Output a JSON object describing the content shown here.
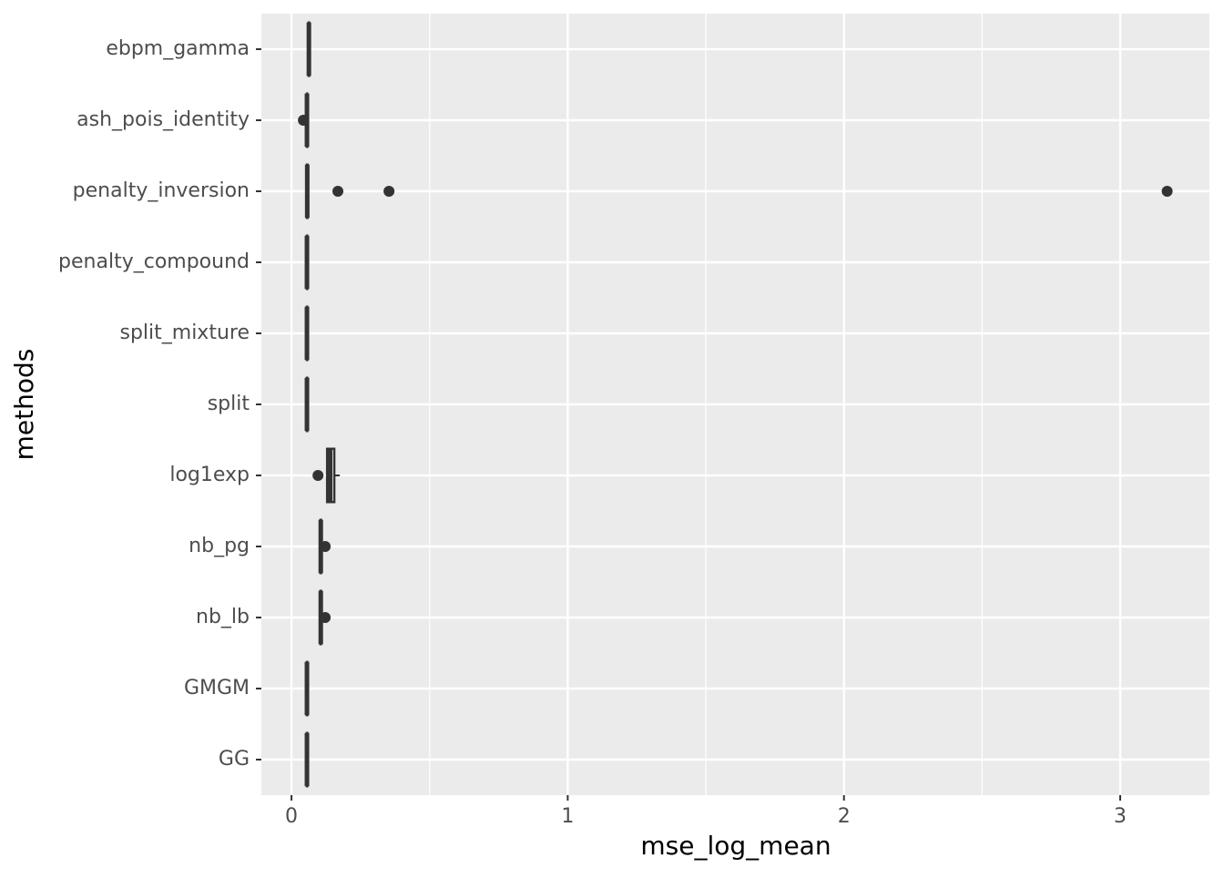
{
  "chart_data": {
    "type": "boxplot",
    "orientation": "horizontal",
    "x_label": "mse_log_mean",
    "y_label": "methods",
    "categories": [
      "ebpm_gamma",
      "ash_pois_identity",
      "penalty_inversion",
      "penalty_compound",
      "split_mixture",
      "split",
      "log1exp",
      "nb_pg",
      "nb_lb",
      "GMGM",
      "GG"
    ],
    "boxes": [
      {
        "min": 0.062,
        "q1": 0.062,
        "median": 0.063,
        "q3": 0.064,
        "max": 0.064,
        "outliers": []
      },
      {
        "min": 0.055,
        "q1": 0.056,
        "median": 0.056,
        "q3": 0.057,
        "max": 0.057,
        "outliers": [
          0.043
        ]
      },
      {
        "min": 0.056,
        "q1": 0.056,
        "median": 0.057,
        "q3": 0.058,
        "max": 0.058,
        "outliers": [
          0.168,
          0.353,
          3.17
        ]
      },
      {
        "min": 0.055,
        "q1": 0.056,
        "median": 0.056,
        "q3": 0.057,
        "max": 0.057,
        "outliers": []
      },
      {
        "min": 0.055,
        "q1": 0.056,
        "median": 0.056,
        "q3": 0.057,
        "max": 0.057,
        "outliers": []
      },
      {
        "min": 0.055,
        "q1": 0.056,
        "median": 0.056,
        "q3": 0.057,
        "max": 0.057,
        "outliers": []
      },
      {
        "min": 0.129,
        "q1": 0.129,
        "median": 0.14,
        "q3": 0.155,
        "max": 0.175,
        "outliers": [
          0.096
        ]
      },
      {
        "min": 0.105,
        "q1": 0.105,
        "median": 0.106,
        "q3": 0.107,
        "max": 0.107,
        "outliers": [
          0.122
        ]
      },
      {
        "min": 0.105,
        "q1": 0.105,
        "median": 0.106,
        "q3": 0.107,
        "max": 0.107,
        "outliers": [
          0.122
        ]
      },
      {
        "min": 0.055,
        "q1": 0.056,
        "median": 0.056,
        "q3": 0.057,
        "max": 0.057,
        "outliers": []
      },
      {
        "min": 0.055,
        "q1": 0.056,
        "median": 0.056,
        "q3": 0.057,
        "max": 0.057,
        "outliers": []
      }
    ],
    "color": "#333333",
    "xlim": [
      -0.109,
      3.323
    ],
    "xticks": [
      0,
      1,
      2,
      3
    ],
    "minor_xticks": [
      0.5,
      1.5,
      2.5
    ],
    "grid": true
  }
}
